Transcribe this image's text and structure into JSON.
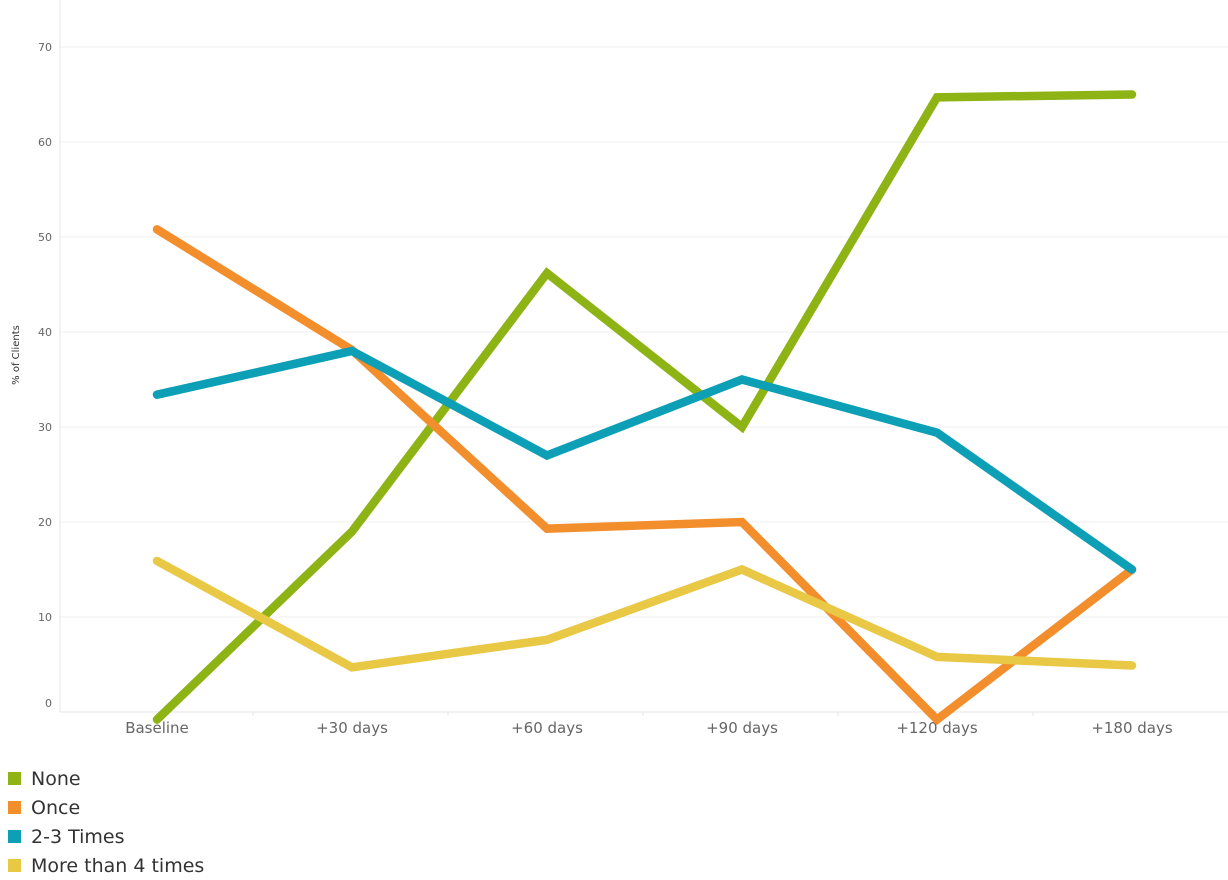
{
  "chart_data": {
    "type": "line",
    "title": "",
    "xlabel": "",
    "ylabel": "% of Clients",
    "categories": [
      "Baseline",
      "+30 days",
      "+60 days",
      "+90 days",
      "+120 days",
      "+180 days"
    ],
    "y_ticks": [
      0,
      10,
      20,
      30,
      40,
      50,
      60,
      70
    ],
    "ylim": [
      -1,
      72
    ],
    "grid": true,
    "legend_position": "bottom-left",
    "series": [
      {
        "name": "None",
        "color": "#8db314",
        "values": [
          -0.8,
          19,
          46.2,
          30,
          64.7,
          65
        ]
      },
      {
        "name": "Once",
        "color": "#f28e2c",
        "values": [
          50.8,
          38.1,
          19.3,
          20,
          -0.8,
          15
        ]
      },
      {
        "name": "2-3 Times",
        "color": "#0c9fb5",
        "values": [
          33.4,
          38,
          27,
          35,
          29.4,
          15
        ]
      },
      {
        "name": "More than 4 times",
        "color": "#e8c845",
        "values": [
          15.9,
          4.7,
          7.6,
          15,
          5.8,
          4.9
        ]
      }
    ]
  }
}
